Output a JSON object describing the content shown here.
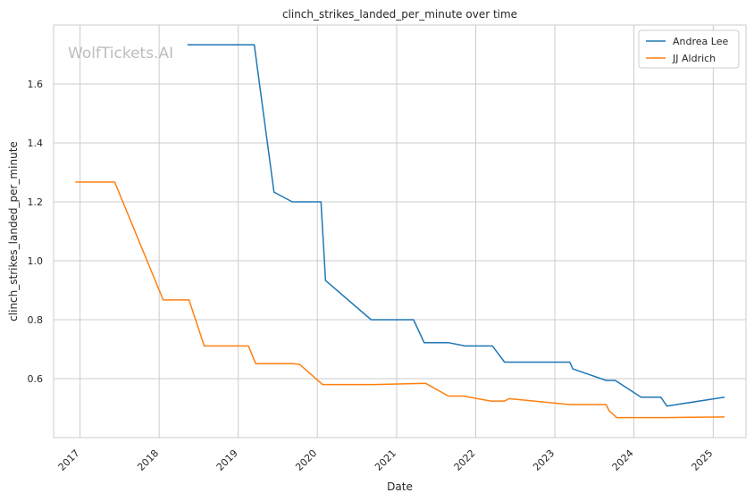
{
  "chart_data": {
    "type": "line",
    "title": "clinch_strikes_landed_per_minute over time",
    "xlabel": "Date",
    "ylabel": "clinch_strikes_landed_per_minute",
    "watermark": "WolfTickets.AI",
    "xlim": [
      "2016-09-01",
      "2025-06-01"
    ],
    "ylim": [
      0.4,
      1.8
    ],
    "x_ticks": [
      "2017-01-01",
      "2018-01-01",
      "2019-01-01",
      "2020-01-01",
      "2021-01-01",
      "2022-01-01",
      "2023-01-01",
      "2024-01-01",
      "2025-01-01"
    ],
    "x_tick_labels": [
      "2017",
      "2018",
      "2019",
      "2020",
      "2021",
      "2022",
      "2023",
      "2024",
      "2025"
    ],
    "y_ticks": [
      0.6,
      0.8,
      1.0,
      1.2,
      1.4,
      1.6
    ],
    "y_tick_labels": [
      "0.6",
      "0.8",
      "1.0",
      "1.2",
      "1.4",
      "1.6"
    ],
    "grid": true,
    "legend_position": "top-right",
    "series": [
      {
        "name": "Andrea Lee",
        "color": "#1f77b4",
        "x": [
          "2018-05-12",
          "2019-03-16",
          "2019-06-15",
          "2019-09-07",
          "2020-01-18",
          "2020-02-08",
          "2020-09-05",
          "2021-03-20",
          "2021-05-08",
          "2021-08-28",
          "2021-11-13",
          "2022-03-19",
          "2022-05-14",
          "2023-03-11",
          "2023-03-25",
          "2023-08-26",
          "2023-10-07",
          "2024-02-03",
          "2024-05-04",
          "2024-06-01",
          "2025-02-22"
        ],
        "y": [
          1.733,
          1.733,
          1.233,
          1.2,
          1.2,
          0.933,
          0.8,
          0.8,
          0.722,
          0.722,
          0.711,
          0.711,
          0.656,
          0.656,
          0.633,
          0.594,
          0.594,
          0.537,
          0.537,
          0.507,
          0.537
        ]
      },
      {
        "name": "JJ Aldrich",
        "color": "#ff7f0e",
        "x": [
          "2016-12-10",
          "2017-06-10",
          "2018-01-20",
          "2018-05-19",
          "2018-07-28",
          "2019-02-17",
          "2019-03-23",
          "2019-09-14",
          "2019-10-12",
          "2020-01-25",
          "2020-09-19",
          "2021-05-15",
          "2021-08-28",
          "2021-11-06",
          "2022-03-12",
          "2022-05-14",
          "2022-06-04",
          "2023-03-11",
          "2023-08-26",
          "2023-09-09",
          "2023-10-14",
          "2024-06-01",
          "2025-02-22"
        ],
        "y": [
          1.267,
          1.267,
          0.867,
          0.867,
          0.711,
          0.711,
          0.651,
          0.651,
          0.648,
          0.58,
          0.58,
          0.584,
          0.541,
          0.541,
          0.524,
          0.524,
          0.532,
          0.512,
          0.512,
          0.491,
          0.468,
          0.468,
          0.47
        ]
      }
    ]
  }
}
